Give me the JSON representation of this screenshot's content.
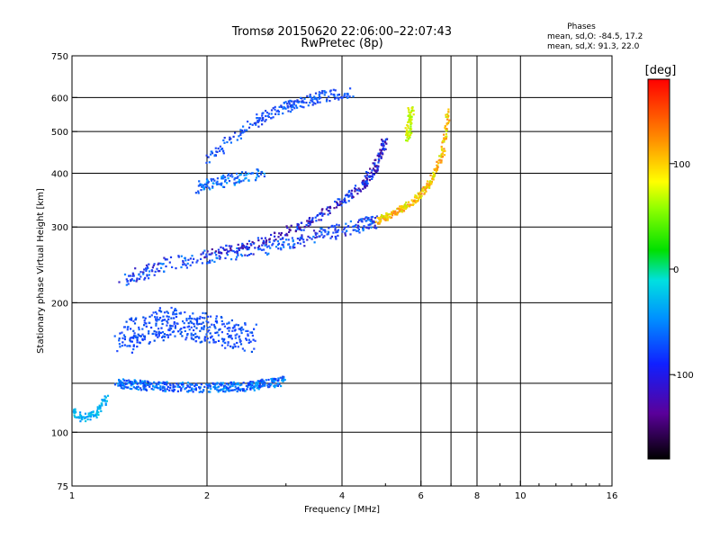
{
  "chart_data": {
    "type": "scatter",
    "title": "Tromsø 20150620 22:06:00–22:07:43",
    "subtitle": "RwPretec (8p)",
    "xlabel": "Frequency [MHz]",
    "ylabel": "Stationary phase Virtual Height [km]",
    "x_scale": "log",
    "y_scale": "log",
    "xlim": [
      1,
      16
    ],
    "ylim": [
      75,
      750
    ],
    "x_ticks": [
      1,
      2,
      4,
      6,
      8,
      10,
      16
    ],
    "x_tick_labels": [
      "1",
      "2",
      "4",
      "6",
      "8",
      "10",
      "16"
    ],
    "x_gridlines": [
      2,
      4,
      6,
      7,
      8,
      10
    ],
    "y_ticks": [
      75,
      100,
      200,
      300,
      400,
      500,
      600,
      750
    ],
    "y_tick_labels": [
      "75",
      "100",
      "200",
      "300",
      "400",
      "500",
      "600",
      "750"
    ],
    "y_gridlines": [
      100,
      130,
      200,
      300,
      400,
      500,
      600
    ],
    "grid": true,
    "stats": {
      "heading": "Phases",
      "line_o": "mean, sd,O: -84.5, 17.2",
      "line_x": "mean, sd,X:  91.3, 22.0"
    },
    "colorbar": {
      "label": "[deg]",
      "range": [
        -180,
        180
      ],
      "ticks": [
        100,
        0,
        -100
      ],
      "tick_labels": [
        "100",
        "0",
        "-100"
      ]
    },
    "series": [
      {
        "kind": "low_trace",
        "x": [
          1.0,
          1.06,
          1.12,
          1.2
        ],
        "y": [
          112,
          108,
          110,
          120
        ]
      },
      {
        "kind": "e_region",
        "x": [
          1.25,
          1.5,
          2.0,
          2.5,
          3.0
        ],
        "y": [
          130,
          128,
          127,
          128,
          132
        ]
      },
      {
        "kind": "e_spread",
        "x": [
          1.3,
          1.6,
          2.0,
          2.5
        ],
        "y": [
          165,
          180,
          175,
          165
        ]
      },
      {
        "kind": "f1_lower",
        "x": [
          1.3,
          1.6,
          2.0,
          2.8,
          3.5,
          4.3,
          4.8
        ],
        "y": [
          225,
          245,
          255,
          270,
          285,
          300,
          310
        ]
      },
      {
        "kind": "o_trace",
        "x": [
          2.0,
          2.6,
          3.2,
          3.8,
          4.4,
          4.8,
          5.0
        ],
        "y": [
          260,
          275,
          300,
          330,
          370,
          420,
          480
        ]
      },
      {
        "kind": "f2_upper",
        "x": [
          2.0,
          2.5,
          3.0,
          3.5,
          4.2
        ],
        "y": [
          430,
          520,
          570,
          600,
          615
        ]
      },
      {
        "kind": "f_mid",
        "x": [
          1.9,
          2.2,
          2.7
        ],
        "y": [
          370,
          385,
          400
        ]
      },
      {
        "kind": "x_trace",
        "x": [
          4.8,
          5.3,
          5.8,
          6.3,
          6.7,
          6.9
        ],
        "y": [
          310,
          325,
          345,
          380,
          440,
          560
        ]
      },
      {
        "kind": "x_yellow_upper",
        "x": [
          5.6,
          5.7
        ],
        "y": [
          480,
          560
        ]
      }
    ]
  }
}
